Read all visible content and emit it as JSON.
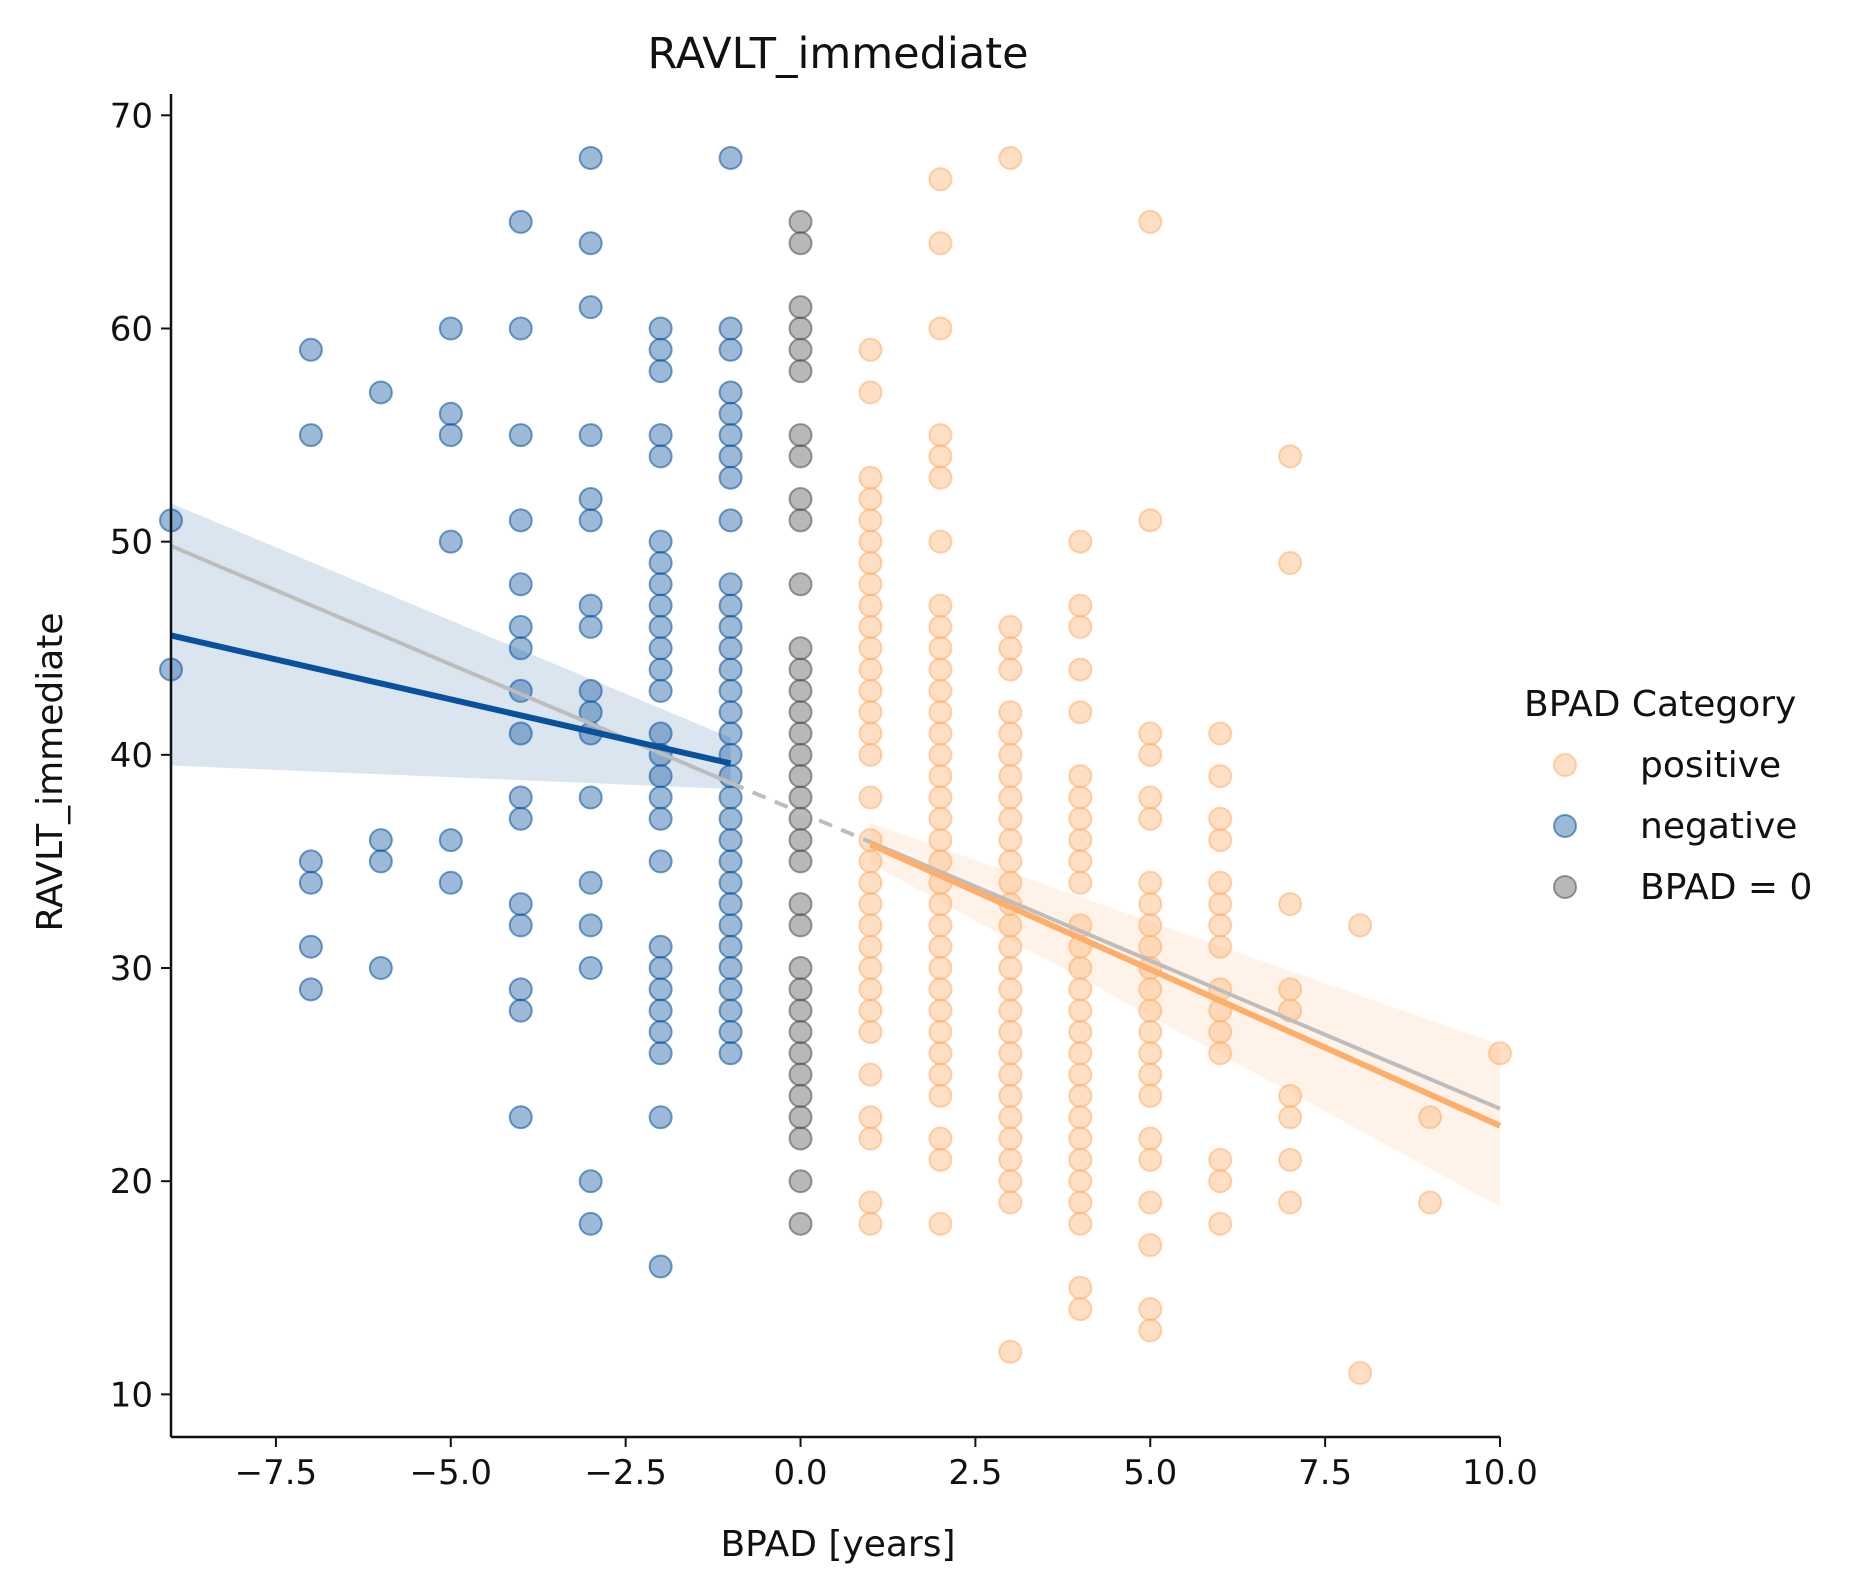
{
  "chart_data": {
    "type": "scatter",
    "title": "RAVLT_immediate",
    "xlabel": "BPAD [years]",
    "ylabel": "RAVLT_immediate",
    "xlim": [
      -9,
      10
    ],
    "ylim": [
      8,
      71
    ],
    "xticks": [
      -7.5,
      -5.0,
      -2.5,
      0.0,
      2.5,
      5.0,
      7.5,
      10.0
    ],
    "xtick_labels": [
      "−7.5",
      "−5.0",
      "−2.5",
      "0.0",
      "2.5",
      "5.0",
      "7.5",
      "10.0"
    ],
    "yticks": [
      10,
      20,
      30,
      40,
      50,
      60,
      70
    ],
    "ytick_labels": [
      "10",
      "20",
      "30",
      "40",
      "50",
      "60",
      "70"
    ],
    "grid": false,
    "legend": {
      "title": "BPAD Category",
      "placement": "right",
      "entries": [
        "positive",
        "negative",
        "BPAD = 0"
      ]
    },
    "series": [
      {
        "name": "positive",
        "color": "#fdae6b",
        "points": [
          [
            1,
            18
          ],
          [
            1,
            19
          ],
          [
            1,
            22
          ],
          [
            1,
            23
          ],
          [
            1,
            25
          ],
          [
            1,
            27
          ],
          [
            1,
            28
          ],
          [
            1,
            29
          ],
          [
            1,
            30
          ],
          [
            1,
            31
          ],
          [
            1,
            32
          ],
          [
            1,
            33
          ],
          [
            1,
            34
          ],
          [
            1,
            35
          ],
          [
            1,
            36
          ],
          [
            1,
            38
          ],
          [
            1,
            40
          ],
          [
            1,
            41
          ],
          [
            1,
            42
          ],
          [
            1,
            43
          ],
          [
            1,
            44
          ],
          [
            1,
            45
          ],
          [
            1,
            46
          ],
          [
            1,
            47
          ],
          [
            1,
            48
          ],
          [
            1,
            49
          ],
          [
            1,
            50
          ],
          [
            1,
            51
          ],
          [
            1,
            52
          ],
          [
            1,
            53
          ],
          [
            1,
            57
          ],
          [
            1,
            59
          ],
          [
            2,
            18
          ],
          [
            2,
            21
          ],
          [
            2,
            22
          ],
          [
            2,
            24
          ],
          [
            2,
            25
          ],
          [
            2,
            26
          ],
          [
            2,
            27
          ],
          [
            2,
            28
          ],
          [
            2,
            29
          ],
          [
            2,
            30
          ],
          [
            2,
            31
          ],
          [
            2,
            32
          ],
          [
            2,
            33
          ],
          [
            2,
            34
          ],
          [
            2,
            35
          ],
          [
            2,
            36
          ],
          [
            2,
            37
          ],
          [
            2,
            38
          ],
          [
            2,
            39
          ],
          [
            2,
            40
          ],
          [
            2,
            41
          ],
          [
            2,
            42
          ],
          [
            2,
            43
          ],
          [
            2,
            44
          ],
          [
            2,
            45
          ],
          [
            2,
            46
          ],
          [
            2,
            47
          ],
          [
            2,
            50
          ],
          [
            2,
            53
          ],
          [
            2,
            54
          ],
          [
            2,
            55
          ],
          [
            2,
            60
          ],
          [
            2,
            64
          ],
          [
            2,
            67
          ],
          [
            3,
            12
          ],
          [
            3,
            19
          ],
          [
            3,
            20
          ],
          [
            3,
            21
          ],
          [
            3,
            22
          ],
          [
            3,
            23
          ],
          [
            3,
            24
          ],
          [
            3,
            25
          ],
          [
            3,
            26
          ],
          [
            3,
            27
          ],
          [
            3,
            28
          ],
          [
            3,
            29
          ],
          [
            3,
            30
          ],
          [
            3,
            31
          ],
          [
            3,
            32
          ],
          [
            3,
            33
          ],
          [
            3,
            34
          ],
          [
            3,
            35
          ],
          [
            3,
            36
          ],
          [
            3,
            37
          ],
          [
            3,
            38
          ],
          [
            3,
            39
          ],
          [
            3,
            40
          ],
          [
            3,
            41
          ],
          [
            3,
            42
          ],
          [
            3,
            44
          ],
          [
            3,
            45
          ],
          [
            3,
            46
          ],
          [
            3,
            68
          ],
          [
            4,
            14
          ],
          [
            4,
            15
          ],
          [
            4,
            18
          ],
          [
            4,
            19
          ],
          [
            4,
            20
          ],
          [
            4,
            21
          ],
          [
            4,
            22
          ],
          [
            4,
            23
          ],
          [
            4,
            24
          ],
          [
            4,
            25
          ],
          [
            4,
            26
          ],
          [
            4,
            27
          ],
          [
            4,
            28
          ],
          [
            4,
            29
          ],
          [
            4,
            30
          ],
          [
            4,
            31
          ],
          [
            4,
            32
          ],
          [
            4,
            34
          ],
          [
            4,
            35
          ],
          [
            4,
            36
          ],
          [
            4,
            37
          ],
          [
            4,
            38
          ],
          [
            4,
            39
          ],
          [
            4,
            42
          ],
          [
            4,
            44
          ],
          [
            4,
            46
          ],
          [
            4,
            47
          ],
          [
            4,
            50
          ],
          [
            5,
            13
          ],
          [
            5,
            14
          ],
          [
            5,
            17
          ],
          [
            5,
            19
          ],
          [
            5,
            21
          ],
          [
            5,
            22
          ],
          [
            5,
            24
          ],
          [
            5,
            25
          ],
          [
            5,
            26
          ],
          [
            5,
            27
          ],
          [
            5,
            28
          ],
          [
            5,
            29
          ],
          [
            5,
            30
          ],
          [
            5,
            31
          ],
          [
            5,
            32
          ],
          [
            5,
            33
          ],
          [
            5,
            34
          ],
          [
            5,
            37
          ],
          [
            5,
            38
          ],
          [
            5,
            40
          ],
          [
            5,
            41
          ],
          [
            5,
            51
          ],
          [
            5,
            65
          ],
          [
            6,
            18
          ],
          [
            6,
            20
          ],
          [
            6,
            21
          ],
          [
            6,
            26
          ],
          [
            6,
            27
          ],
          [
            6,
            28
          ],
          [
            6,
            29
          ],
          [
            6,
            31
          ],
          [
            6,
            32
          ],
          [
            6,
            33
          ],
          [
            6,
            34
          ],
          [
            6,
            36
          ],
          [
            6,
            37
          ],
          [
            6,
            39
          ],
          [
            6,
            41
          ],
          [
            7,
            19
          ],
          [
            7,
            21
          ],
          [
            7,
            23
          ],
          [
            7,
            24
          ],
          [
            7,
            28
          ],
          [
            7,
            29
          ],
          [
            7,
            33
          ],
          [
            7,
            49
          ],
          [
            7,
            54
          ],
          [
            8,
            11
          ],
          [
            8,
            32
          ],
          [
            9,
            19
          ],
          [
            9,
            23
          ],
          [
            10,
            26
          ]
        ],
        "fit": {
          "x": [
            1,
            10
          ],
          "y": [
            35.8,
            22.6
          ],
          "band_lower": [
            34.9,
            18.8
          ],
          "band_upper": [
            36.8,
            26.4
          ]
        }
      },
      {
        "name": "negative",
        "color": "#08519c",
        "points": [
          [
            -9,
            44
          ],
          [
            -9,
            51
          ],
          [
            -7,
            29
          ],
          [
            -7,
            31
          ],
          [
            -7,
            34
          ],
          [
            -7,
            35
          ],
          [
            -7,
            55
          ],
          [
            -7,
            59
          ],
          [
            -6,
            30
          ],
          [
            -6,
            35
          ],
          [
            -6,
            36
          ],
          [
            -6,
            57
          ],
          [
            -5,
            34
          ],
          [
            -5,
            36
          ],
          [
            -5,
            50
          ],
          [
            -5,
            55
          ],
          [
            -5,
            56
          ],
          [
            -5,
            60
          ],
          [
            -4,
            23
          ],
          [
            -4,
            28
          ],
          [
            -4,
            29
          ],
          [
            -4,
            32
          ],
          [
            -4,
            33
          ],
          [
            -4,
            37
          ],
          [
            -4,
            38
          ],
          [
            -4,
            41
          ],
          [
            -4,
            43
          ],
          [
            -4,
            45
          ],
          [
            -4,
            46
          ],
          [
            -4,
            48
          ],
          [
            -4,
            51
          ],
          [
            -4,
            55
          ],
          [
            -4,
            60
          ],
          [
            -4,
            65
          ],
          [
            -3,
            18
          ],
          [
            -3,
            20
          ],
          [
            -3,
            30
          ],
          [
            -3,
            32
          ],
          [
            -3,
            34
          ],
          [
            -3,
            38
          ],
          [
            -3,
            41
          ],
          [
            -3,
            42
          ],
          [
            -3,
            43
          ],
          [
            -3,
            46
          ],
          [
            -3,
            47
          ],
          [
            -3,
            51
          ],
          [
            -3,
            52
          ],
          [
            -3,
            55
          ],
          [
            -3,
            61
          ],
          [
            -3,
            64
          ],
          [
            -3,
            68
          ],
          [
            -2,
            16
          ],
          [
            -2,
            23
          ],
          [
            -2,
            26
          ],
          [
            -2,
            27
          ],
          [
            -2,
            28
          ],
          [
            -2,
            29
          ],
          [
            -2,
            30
          ],
          [
            -2,
            31
          ],
          [
            -2,
            35
          ],
          [
            -2,
            37
          ],
          [
            -2,
            38
          ],
          [
            -2,
            39
          ],
          [
            -2,
            40
          ],
          [
            -2,
            41
          ],
          [
            -2,
            43
          ],
          [
            -2,
            44
          ],
          [
            -2,
            45
          ],
          [
            -2,
            46
          ],
          [
            -2,
            47
          ],
          [
            -2,
            48
          ],
          [
            -2,
            49
          ],
          [
            -2,
            50
          ],
          [
            -2,
            54
          ],
          [
            -2,
            55
          ],
          [
            -2,
            58
          ],
          [
            -2,
            59
          ],
          [
            -2,
            60
          ],
          [
            -1,
            26
          ],
          [
            -1,
            27
          ],
          [
            -1,
            28
          ],
          [
            -1,
            29
          ],
          [
            -1,
            30
          ],
          [
            -1,
            31
          ],
          [
            -1,
            32
          ],
          [
            -1,
            33
          ],
          [
            -1,
            34
          ],
          [
            -1,
            35
          ],
          [
            -1,
            36
          ],
          [
            -1,
            37
          ],
          [
            -1,
            38
          ],
          [
            -1,
            39
          ],
          [
            -1,
            40
          ],
          [
            -1,
            41
          ],
          [
            -1,
            42
          ],
          [
            -1,
            43
          ],
          [
            -1,
            44
          ],
          [
            -1,
            45
          ],
          [
            -1,
            46
          ],
          [
            -1,
            47
          ],
          [
            -1,
            48
          ],
          [
            -1,
            51
          ],
          [
            -1,
            53
          ],
          [
            -1,
            54
          ],
          [
            -1,
            55
          ],
          [
            -1,
            56
          ],
          [
            -1,
            57
          ],
          [
            -1,
            59
          ],
          [
            -1,
            60
          ],
          [
            -1,
            68
          ]
        ],
        "fit": {
          "x": [
            -9,
            -1
          ],
          "y": [
            45.6,
            39.6
          ],
          "band_lower": [
            39.5,
            38.4
          ],
          "band_upper": [
            51.8,
            40.8
          ]
        }
      },
      {
        "name": "BPAD = 0",
        "color": "#4d4d4d",
        "points": [
          [
            0,
            18
          ],
          [
            0,
            20
          ],
          [
            0,
            22
          ],
          [
            0,
            23
          ],
          [
            0,
            24
          ],
          [
            0,
            25
          ],
          [
            0,
            26
          ],
          [
            0,
            27
          ],
          [
            0,
            28
          ],
          [
            0,
            29
          ],
          [
            0,
            30
          ],
          [
            0,
            32
          ],
          [
            0,
            33
          ],
          [
            0,
            35
          ],
          [
            0,
            36
          ],
          [
            0,
            37
          ],
          [
            0,
            38
          ],
          [
            0,
            39
          ],
          [
            0,
            40
          ],
          [
            0,
            41
          ],
          [
            0,
            42
          ],
          [
            0,
            43
          ],
          [
            0,
            44
          ],
          [
            0,
            45
          ],
          [
            0,
            48
          ],
          [
            0,
            51
          ],
          [
            0,
            52
          ],
          [
            0,
            54
          ],
          [
            0,
            55
          ],
          [
            0,
            58
          ],
          [
            0,
            59
          ],
          [
            0,
            60
          ],
          [
            0,
            61
          ],
          [
            0,
            64
          ],
          [
            0,
            65
          ]
        ]
      }
    ],
    "overall_fit": {
      "color": "#bdbdbd",
      "x": [
        -9,
        10
      ],
      "y": [
        49.8,
        23.4
      ]
    }
  }
}
